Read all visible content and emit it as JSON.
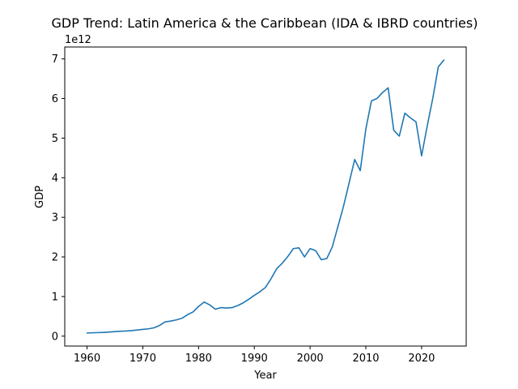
{
  "chart_data": {
    "type": "line",
    "title": "GDP Trend: Latin America & the Caribbean (IDA & IBRD countries)",
    "xlabel": "Year",
    "ylabel": "GDP",
    "y_offset_label": "1e12",
    "xlim": [
      1956,
      2028
    ],
    "ylim": [
      -0.25,
      7.3
    ],
    "x_ticks": [
      1960,
      1970,
      1980,
      1990,
      2000,
      2010,
      2020
    ],
    "y_ticks": [
      0,
      1,
      2,
      3,
      4,
      5,
      6,
      7
    ],
    "grid": false,
    "line_color": "#1f77b4",
    "series": [
      {
        "x": [
          1960,
          1961,
          1962,
          1963,
          1964,
          1965,
          1966,
          1967,
          1968,
          1969,
          1970,
          1971,
          1972,
          1973,
          1974,
          1975,
          1976,
          1977,
          1978,
          1979,
          1980,
          1981,
          1982,
          1983,
          1984,
          1985,
          1986,
          1987,
          1988,
          1989,
          1990,
          1991,
          1992,
          1993,
          1994,
          1995,
          1996,
          1997,
          1998,
          1999,
          2000,
          2001,
          2002,
          2003,
          2004,
          2005,
          2006,
          2007,
          2008,
          2009,
          2010,
          2011,
          2012,
          2013,
          2014,
          2015,
          2016,
          2017,
          2018,
          2019,
          2020,
          2021,
          2022,
          2023,
          2024
        ],
        "values": [
          0.08,
          0.085,
          0.09,
          0.095,
          0.105,
          0.115,
          0.125,
          0.13,
          0.14,
          0.155,
          0.17,
          0.185,
          0.21,
          0.27,
          0.36,
          0.38,
          0.41,
          0.45,
          0.54,
          0.61,
          0.75,
          0.86,
          0.79,
          0.68,
          0.72,
          0.71,
          0.72,
          0.77,
          0.84,
          0.93,
          1.03,
          1.12,
          1.23,
          1.45,
          1.7,
          1.84,
          2.01,
          2.21,
          2.23,
          2.0,
          2.21,
          2.16,
          1.93,
          1.96,
          2.26,
          2.77,
          3.28,
          3.87,
          4.46,
          4.18,
          5.23,
          5.94,
          6.0,
          6.15,
          6.27,
          5.2,
          5.05,
          5.63,
          5.51,
          5.41,
          4.55,
          5.3,
          6.0,
          6.8,
          6.97
        ]
      }
    ]
  }
}
